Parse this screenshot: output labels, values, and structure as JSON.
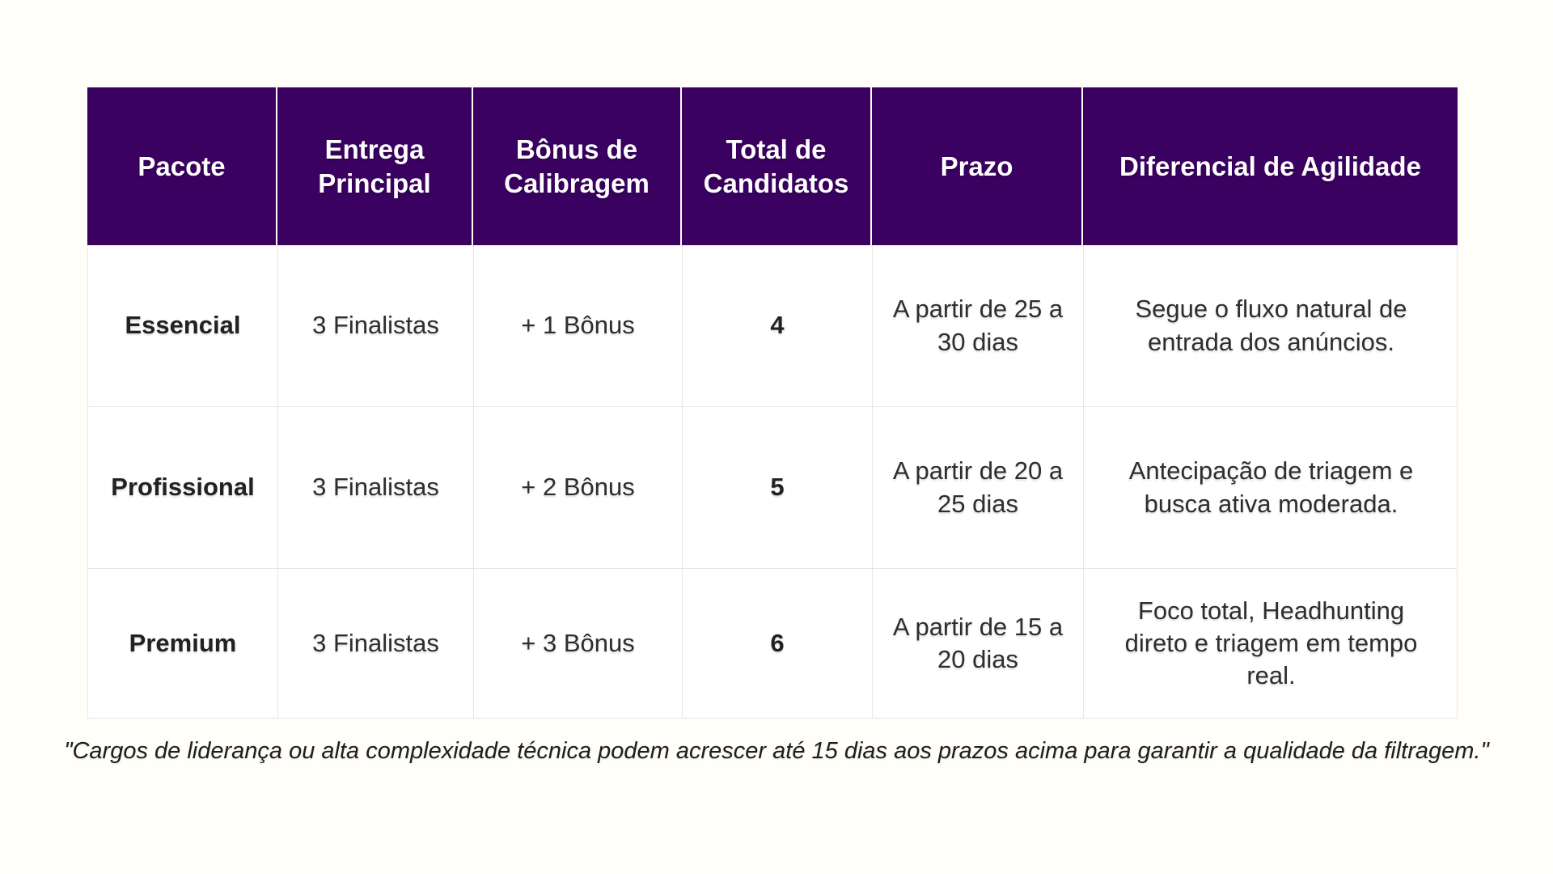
{
  "table": {
    "columns": [
      {
        "label": "Pacote"
      },
      {
        "label": "Entrega Principal"
      },
      {
        "label": "Bônus de Calibragem"
      },
      {
        "label": "Total de Candidatos"
      },
      {
        "label": "Prazo"
      },
      {
        "label": "Diferencial de Agilidade"
      }
    ],
    "rows": [
      {
        "pacote": "Essencial",
        "entrega": "3 Finalistas",
        "bonus": "+ 1 Bônus",
        "total": "4",
        "prazo": "A partir de 25 a 30 dias",
        "diferencial": "Segue o fluxo natural de entrada dos anúncios."
      },
      {
        "pacote": "Profissional",
        "entrega": "3 Finalistas",
        "bonus": "+ 2 Bônus",
        "total": "5",
        "prazo": "A partir de 20 a 25 dias",
        "diferencial": "Antecipação de triagem e busca ativa moderada."
      },
      {
        "pacote": "Premium",
        "entrega": "3 Finalistas",
        "bonus": "+ 3 Bônus",
        "total": "6",
        "prazo": "A partir de 15 a 20 dias",
        "diferencial": "Foco total, Headhunting direto e triagem em tempo real."
      }
    ]
  },
  "footnote": "\"Cargos de liderança ou alta complexidade técnica podem acrescer até 15 dias aos prazos acima para garantir a qualidade da filtragem.\"",
  "colors": {
    "header_bg": "#3A0161",
    "header_text": "#FFFFFF",
    "grid_line": "#E8E6E3",
    "page_bg": "#FFFEF9",
    "body_text": "#2E2E2E"
  }
}
